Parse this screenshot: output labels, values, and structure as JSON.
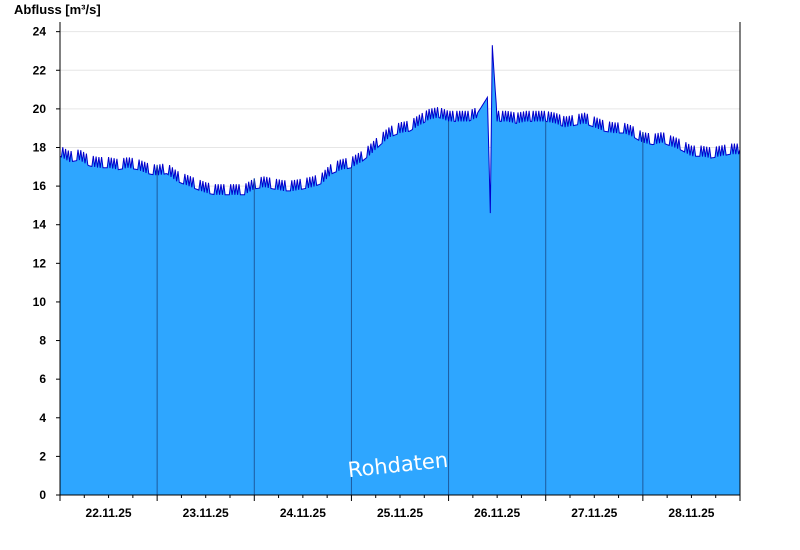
{
  "chart_data": {
    "type": "area",
    "ylabel": "Abfluss [m³/s]",
    "ylim": [
      0,
      24.5
    ],
    "yticks": [
      0,
      2,
      4,
      6,
      8,
      10,
      12,
      14,
      16,
      18,
      20,
      22,
      24
    ],
    "x_day_labels": [
      "22.11.25",
      "23.11.25",
      "24.11.25",
      "25.11.25",
      "26.11.25",
      "27.11.25",
      "28.11.25"
    ],
    "annotation": "Rohdaten",
    "colors": {
      "fill": "#2ea6ff",
      "line": "#0000cc",
      "separator": "#1d5a9e",
      "axis": "#000000",
      "grid": "#e6e6e6"
    },
    "series": [
      {
        "x": [
          0.0,
          0.1,
          0.2,
          0.3,
          0.4,
          0.5,
          0.6,
          0.7,
          0.8,
          0.9,
          1.0,
          1.1,
          1.2,
          1.3,
          1.4,
          1.5,
          1.6,
          1.7,
          1.8,
          1.9,
          2.0,
          2.1,
          2.2,
          2.3,
          2.4,
          2.5,
          2.6,
          2.7,
          2.8,
          2.9,
          3.0,
          3.1,
          3.2,
          3.3,
          3.4,
          3.5,
          3.6,
          3.7,
          3.8,
          3.9,
          4.0,
          4.1,
          4.2,
          4.3,
          4.35,
          4.4,
          4.43,
          4.45,
          4.48,
          4.5,
          4.6,
          4.7,
          4.8,
          4.9,
          5.0,
          5.1,
          5.2,
          5.3,
          5.4,
          5.5,
          5.6,
          5.7,
          5.8,
          5.9,
          6.0,
          6.1,
          6.2,
          6.3,
          6.4,
          6.5,
          6.6,
          6.7,
          6.8,
          6.9,
          7.0
        ],
        "values": [
          17.8,
          17.5,
          17.6,
          17.3,
          17.2,
          17.2,
          17.1,
          17.2,
          17.1,
          16.9,
          16.8,
          16.9,
          16.5,
          16.3,
          16.1,
          15.9,
          15.8,
          15.8,
          15.8,
          15.8,
          16.1,
          16.2,
          16.1,
          16.0,
          16.0,
          16.1,
          16.2,
          16.4,
          16.9,
          17.1,
          17.2,
          17.5,
          17.9,
          18.4,
          18.8,
          19.0,
          19.1,
          19.4,
          19.7,
          19.8,
          19.6,
          19.6,
          19.6,
          19.8,
          20.2,
          20.6,
          14.6,
          23.3,
          21.0,
          19.6,
          19.6,
          19.5,
          19.6,
          19.6,
          19.6,
          19.5,
          19.3,
          19.4,
          19.5,
          19.3,
          19.1,
          19.0,
          19.0,
          18.8,
          18.5,
          18.4,
          18.5,
          18.3,
          18.1,
          17.8,
          17.8,
          17.7,
          17.8,
          17.9,
          17.9
        ]
      }
    ]
  }
}
